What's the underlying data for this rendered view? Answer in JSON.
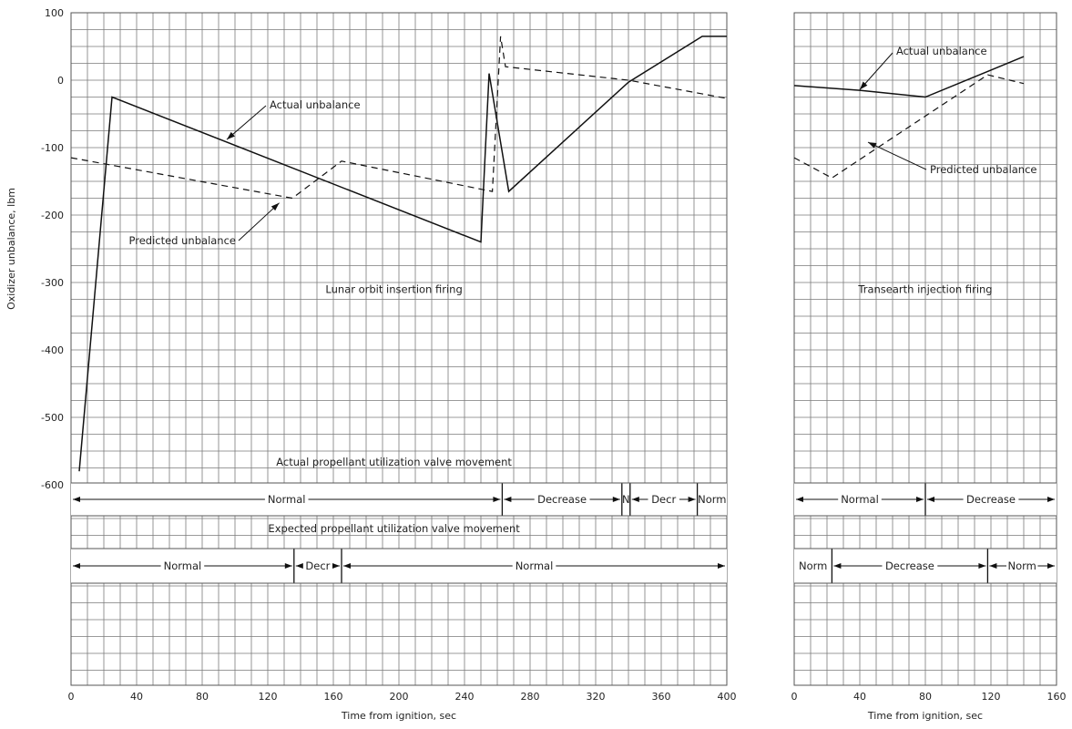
{
  "chart_data": [
    {
      "type": "line",
      "title": "Lunar orbit insertion firing",
      "xlabel": "Time from ignition, sec",
      "ylabel": "Oxidizer unbalance, lbm",
      "xlim": [
        0,
        400
      ],
      "ylim": [
        -600,
        100
      ],
      "x_ticks": [
        "0",
        "40",
        "80",
        "120",
        "160",
        "200",
        "240",
        "280",
        "320",
        "360",
        "400"
      ],
      "y_ticks": [
        "100",
        "0",
        "-100",
        "-200",
        "-300",
        "-400",
        "-500",
        "-600"
      ],
      "grid": true,
      "series": [
        {
          "name": "Actual unbalance",
          "style": "solid",
          "points": [
            [
              5,
              -580
            ],
            [
              25,
              -25
            ],
            [
              250,
              -240
            ],
            [
              255,
              10
            ],
            [
              267,
              -165
            ],
            [
              340,
              -3
            ],
            [
              385,
              65
            ],
            [
              400,
              65
            ]
          ]
        },
        {
          "name": "Predicted unbalance",
          "style": "dashed",
          "points": [
            [
              0,
              -115
            ],
            [
              135,
              -175
            ],
            [
              165,
              -120
            ],
            [
              257,
              -165
            ],
            [
              262,
              65
            ],
            [
              265,
              20
            ],
            [
              340,
              0
            ],
            [
              400,
              -27
            ]
          ]
        }
      ],
      "valve_bands": [
        {
          "title": "Actual propellant utilization valve movement",
          "segments": [
            {
              "label": "Normal",
              "from": 0,
              "to": 263
            },
            {
              "label": "Decrease",
              "from": 263,
              "to": 336
            },
            {
              "label": "N",
              "from": 336,
              "to": 341
            },
            {
              "label": "Decr",
              "from": 341,
              "to": 382
            },
            {
              "label": "Norm",
              "from": 382,
              "to": 400
            }
          ]
        },
        {
          "title": "Expected propellant utilization valve movement",
          "segments": [
            {
              "label": "Normal",
              "from": 0,
              "to": 136
            },
            {
              "label": "Decr",
              "from": 136,
              "to": 165
            },
            {
              "label": "Normal",
              "from": 165,
              "to": 400
            }
          ]
        }
      ]
    },
    {
      "type": "line",
      "title": "Transearth injection firing",
      "xlabel": "Time from ignition, sec",
      "ylabel": "",
      "xlim": [
        0,
        160
      ],
      "ylim": [
        -600,
        100
      ],
      "x_ticks": [
        "0",
        "40",
        "80",
        "120",
        "160"
      ],
      "grid": true,
      "series": [
        {
          "name": "Actual unbalance",
          "style": "solid",
          "points": [
            [
              0,
              -8
            ],
            [
              40,
              -15
            ],
            [
              80,
              -25
            ],
            [
              120,
              15
            ],
            [
              140,
              35
            ]
          ]
        },
        {
          "name": "Predicted unbalance",
          "style": "dashed",
          "points": [
            [
              0,
              -115
            ],
            [
              23,
              -145
            ],
            [
              118,
              8
            ],
            [
              140,
              -5
            ]
          ]
        }
      ],
      "valve_bands": [
        {
          "title": "",
          "segments": [
            {
              "label": "Normal",
              "from": 0,
              "to": 80
            },
            {
              "label": "Decrease",
              "from": 80,
              "to": 160
            }
          ]
        },
        {
          "title": "",
          "segments": [
            {
              "label": "Norm",
              "from": 0,
              "to": 23
            },
            {
              "label": "Decrease",
              "from": 23,
              "to": 118
            },
            {
              "label": "Norm",
              "from": 118,
              "to": 160
            }
          ]
        }
      ]
    }
  ]
}
